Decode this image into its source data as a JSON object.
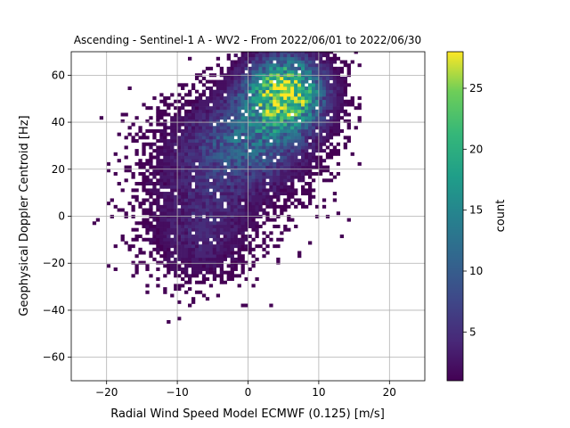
{
  "chart_data": {
    "type": "heatmap",
    "title": "Ascending - Sentinel-1 A - WV2 - From 2022/06/01 to 2022/06/30",
    "xlabel": "Radial Wind Speed Model ECMWF (0.125) [m/s]",
    "ylabel": "Geophysical Doppler Centroid [Hz]",
    "xlim": [
      -25,
      25
    ],
    "ylim": [
      -70,
      70
    ],
    "xticks": [
      -20,
      -10,
      0,
      10,
      20
    ],
    "xtick_labels": [
      "−20",
      "−10",
      "0",
      "10",
      "20"
    ],
    "yticks": [
      -60,
      -40,
      -20,
      0,
      20,
      40,
      60
    ],
    "ytick_labels": [
      "−60",
      "−40",
      "−20",
      "0",
      "20",
      "40",
      "60"
    ],
    "grid": true,
    "colormap": "viridis",
    "colorbar": {
      "label": "count",
      "range": [
        1,
        28
      ],
      "ticks": [
        5,
        10,
        15,
        20,
        25
      ],
      "tick_labels": [
        "5",
        "10",
        "15",
        "20",
        "25"
      ]
    },
    "bin_width_x": 0.5,
    "bin_width_y": 1.4,
    "density_clusters": [
      {
        "x_center": -7,
        "y_center": -8,
        "x_spread": 4.5,
        "y_spread": 12,
        "peak_count": 4
      },
      {
        "x_center": -4,
        "y_center": 22,
        "x_spread": 6,
        "y_spread": 14,
        "peak_count": 5
      },
      {
        "x_center": 5,
        "y_center": 52,
        "x_spread": 3.5,
        "y_spread": 10,
        "peak_count": 26
      },
      {
        "x_center": 1,
        "y_center": 35,
        "x_spread": 5,
        "y_spread": 12,
        "peak_count": 8
      }
    ],
    "data_extent": {
      "x": [
        -22,
        16
      ],
      "y": [
        -47,
        70
      ]
    }
  }
}
